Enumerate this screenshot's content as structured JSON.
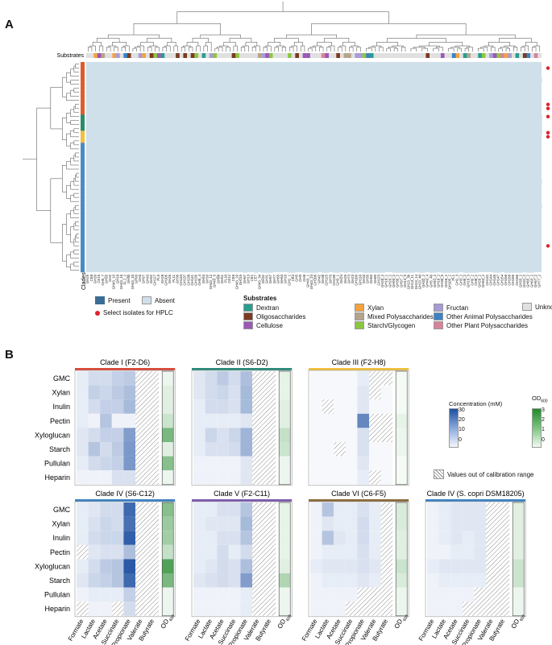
{
  "panelA": {
    "letter": "A",
    "substrates_label": "Substrates",
    "clades_label": "Clades",
    "legend": {
      "present": "Present",
      "absent": "Absent",
      "hplc": "Select isolates for HPLC",
      "substrates_title": "Substrates",
      "substrate_items": [
        {
          "label": "Dextran",
          "color": "#2a9d8f"
        },
        {
          "label": "Oligosaccharides",
          "color": "#7a3b22"
        },
        {
          "label": "Cellulose",
          "color": "#9b59b6"
        },
        {
          "label": "Xylan",
          "color": "#f4a340"
        },
        {
          "label": "Mixed Polysaccharides",
          "color": "#b5a48b"
        },
        {
          "label": "Starch/Glycogen",
          "color": "#8dc63f"
        },
        {
          "label": "Fructan",
          "color": "#a89bd6"
        },
        {
          "label": "Other Animal Polysaccharides",
          "color": "#3b82c4"
        },
        {
          "label": "Other Plant Polysaccharides",
          "color": "#d9829b"
        },
        {
          "label": "Unknown",
          "color": "#e0e0e0"
        }
      ]
    },
    "colors": {
      "present": "#3b6d94",
      "absent": "#cfe0ea",
      "hplc": "#e0202a"
    },
    "clade_colors": [
      "#e05a2b",
      "#2a8a6a",
      "#f0c040",
      "#4a8ac8"
    ],
    "col_labels": [
      "GH29",
      "CE8",
      "GH20",
      "CE15",
      "GH5_7",
      "GH95",
      "GH2",
      "GH43_19",
      "GH18",
      "GH43_16",
      "PL1_2",
      "GH30",
      "GH43_10",
      "GH99",
      "GH3",
      "GH97",
      "GH43",
      "GH92",
      "GH127",
      "PL9",
      "GH28",
      "GH105",
      "GH26",
      "PL11",
      "GH36",
      "GH143",
      "GH137",
      "GH138",
      "GH141",
      "GH139",
      "GH5_4",
      "GH53",
      "GH10",
      "GH43_12",
      "GH43_5",
      "GH88",
      "GH51",
      "PL10",
      "CE12",
      "CE6",
      "GH43_29",
      "GH115",
      "GH67",
      "GH13",
      "CE1",
      "CE7",
      "GH43_34",
      "GH32",
      "GH31",
      "GH57",
      "GH77",
      "GH65",
      "GH63",
      "GH16",
      "GH2_1",
      "CE4",
      "GH5",
      "GH9",
      "GH8",
      "GH43_1",
      "GH43_24",
      "GH106",
      "GH42",
      "GH38",
      "GH125",
      "GH76",
      "GH130",
      "GH3_1",
      "GH24",
      "GH25",
      "GH73",
      "GH23",
      "GH109",
      "GH110",
      "GH33",
      "GH35",
      "GH84",
      "GH89",
      "GH123",
      "GH20_2",
      "GH18_1",
      "GH29_2",
      "GH95_2",
      "GH36_2",
      "GH97_2",
      "GH13_9",
      "GH13_38",
      "GH13_11",
      "GH13_14",
      "GH13_40",
      "GH32_2",
      "GH43_4",
      "GH5_46",
      "GH51_2",
      "GH10_2",
      "GH30_5",
      "GH28_2",
      "GH105_2",
      "PL1",
      "GH2_3",
      "GH3_2",
      "GH5_2",
      "GH16_3",
      "GH9_2",
      "GH8_2",
      "GH26_2",
      "GH53_2",
      "GH142",
      "GH144",
      "GH146",
      "GH147",
      "GH154",
      "GH156",
      "GH158",
      "GH165",
      "GH166",
      "GH33_2",
      "GH31_2",
      "GH65_2",
      "GH63_2",
      "GH57_2",
      "GH77_2"
    ],
    "hplc_rows": [
      1,
      10,
      11,
      13,
      17,
      18,
      45
    ]
  },
  "panelB": {
    "letter": "B",
    "acids": [
      "Formate",
      "Lactate",
      "Acetate",
      "Succinate",
      "Propionate",
      "Valerate",
      "Butyrate"
    ],
    "od_label": "OD",
    "od_sub": "600",
    "substrates": [
      "GMC",
      "Xylan",
      "Inulin",
      "Pectin",
      "Xyloglucan",
      "Starch",
      "Pullulan",
      "Heparin"
    ],
    "conc_legend": {
      "title": "Concentration (mM)",
      "ticks": [
        "30",
        "20",
        "10",
        "0"
      ]
    },
    "od_legend": {
      "title": "OD",
      "sub": "600",
      "ticks": [
        "3",
        "2",
        "1",
        "0"
      ]
    },
    "hatch_label": "Values out of calibration range",
    "clades": [
      {
        "title": "Clade I (F2-D6)",
        "color": "#d9493a",
        "conc": [
          [
            2,
            5,
            5,
            7,
            8,
            -1,
            -1
          ],
          [
            2,
            7,
            6,
            8,
            10,
            -1,
            -1
          ],
          [
            2,
            5,
            7,
            7,
            11,
            -1,
            -1
          ],
          [
            2,
            1,
            9,
            1,
            1,
            -1,
            -1
          ],
          [
            3,
            5,
            7,
            7,
            16,
            -1,
            -1
          ],
          [
            3,
            9,
            5,
            8,
            17,
            -1,
            -1
          ],
          [
            2,
            5,
            6,
            7,
            17,
            -1,
            -1
          ],
          [
            1,
            1,
            1,
            4,
            4,
            -1,
            -1
          ]
        ],
        "od": [
          0.1,
          0.3,
          0.3,
          0.6,
          1.8,
          0.3,
          1.6,
          0.1
        ]
      },
      {
        "title": "Clade II (S6-D2)",
        "color": "#2a8a7a",
        "conc": [
          [
            3,
            5,
            8,
            5,
            10,
            -1,
            -1
          ],
          [
            3,
            5,
            6,
            4,
            11,
            -1,
            -1
          ],
          [
            2,
            5,
            5,
            4,
            11,
            -1,
            -1
          ],
          [
            2,
            2,
            2,
            2,
            3,
            -1,
            -1
          ],
          [
            2,
            6,
            4,
            6,
            12,
            -1,
            -1
          ],
          [
            2,
            4,
            4,
            5,
            12,
            -1,
            -1
          ],
          [
            1,
            1,
            1,
            1,
            3,
            -1,
            -1
          ],
          [
            1,
            1,
            1,
            1,
            3,
            -1,
            -1
          ]
        ],
        "od": [
          0.2,
          0.2,
          0.3,
          0.3,
          0.7,
          0.6,
          0.1,
          0.1
        ]
      },
      {
        "title": "Clade III (F2-H8)",
        "color": "#f0c040",
        "conc": [
          [
            0,
            0,
            0,
            0,
            2,
            -1,
            -1
          ],
          [
            0,
            0,
            0,
            0,
            3,
            -1,
            0
          ],
          [
            0,
            -1,
            0,
            0,
            3,
            0,
            0
          ],
          [
            0,
            0,
            0,
            0,
            20,
            -1,
            -1
          ],
          [
            0,
            0,
            0,
            0,
            4,
            -1,
            -1
          ],
          [
            0,
            0,
            -1,
            0,
            4,
            0,
            0
          ],
          [
            0,
            0,
            0,
            0,
            3,
            0,
            0
          ],
          [
            0,
            0,
            0,
            0,
            2,
            -1,
            0
          ]
        ],
        "od": [
          0,
          0,
          0,
          0.2,
          0.1,
          0.1,
          0,
          0
        ]
      },
      {
        "title": "Clade IV (S6-C12)",
        "color": "#3b82c4",
        "conc": [
          [
            2,
            3,
            5,
            5,
            25,
            -1,
            -1
          ],
          [
            2,
            4,
            6,
            5,
            24,
            -1,
            -1
          ],
          [
            2,
            5,
            6,
            6,
            27,
            -1,
            -1
          ],
          [
            -1,
            3,
            4,
            4,
            10,
            -1,
            -1
          ],
          [
            2,
            5,
            8,
            9,
            28,
            -1,
            -1
          ],
          [
            3,
            6,
            7,
            9,
            25,
            -1,
            -1
          ],
          [
            1,
            2,
            2,
            2,
            7,
            -1,
            -1
          ],
          [
            -1,
            1,
            1,
            -1,
            5,
            -1,
            -1
          ]
        ],
        "od": [
          1.6,
          1.3,
          1.2,
          0.7,
          2.4,
          1.8,
          0.1,
          0.1
        ]
      },
      {
        "title": "Clade V (F2-C11)",
        "color": "#7b5ab0",
        "conc": [
          [
            2,
            2,
            4,
            4,
            9,
            -1,
            -1
          ],
          [
            2,
            3,
            3,
            3,
            11,
            -1,
            -1
          ],
          [
            2,
            2,
            4,
            4,
            9,
            -1,
            -1
          ],
          [
            2,
            2,
            5,
            2,
            5,
            -1,
            -1
          ],
          [
            2,
            3,
            5,
            4,
            10,
            -1,
            -1
          ],
          [
            3,
            4,
            5,
            4,
            16,
            -1,
            -1
          ],
          [
            1,
            1,
            1,
            1,
            2,
            -1,
            -1
          ],
          [
            1,
            1,
            1,
            1,
            2,
            -1,
            -1
          ]
        ],
        "od": [
          0.2,
          0.2,
          0.2,
          0.2,
          0.3,
          1.0,
          0.1,
          0.1
        ]
      },
      {
        "title": "Clade VI (C6-F5)",
        "color": "#8a6a3a",
        "conc": [
          [
            1,
            9,
            2,
            2,
            4,
            2,
            -1
          ],
          [
            1,
            3,
            2,
            2,
            5,
            2,
            -1
          ],
          [
            1,
            9,
            3,
            2,
            5,
            2,
            -1
          ],
          [
            1,
            2,
            2,
            2,
            4,
            2,
            -1
          ],
          [
            2,
            3,
            3,
            3,
            4,
            3,
            -1
          ],
          [
            1,
            2,
            2,
            2,
            3,
            2,
            -1
          ],
          [
            1,
            1,
            1,
            1,
            -1,
            -1,
            -1
          ],
          [
            1,
            1,
            1,
            -1,
            -1,
            -1,
            -1
          ]
        ],
        "od": [
          0.4,
          0.4,
          0.3,
          0.3,
          0.6,
          0.4,
          0.1,
          0.1
        ]
      },
      {
        "title": "Clade IV (S. copri DSM18205)",
        "color": "#3b82c4",
        "conc": [
          [
            1,
            2,
            3,
            3,
            3,
            -1,
            -1
          ],
          [
            1,
            2,
            3,
            3,
            3,
            -1,
            -1
          ],
          [
            1,
            2,
            3,
            2,
            3,
            -1,
            -1
          ],
          [
            1,
            1,
            2,
            2,
            3,
            -1,
            -1
          ],
          [
            2,
            3,
            3,
            3,
            3,
            -1,
            -1
          ],
          [
            1,
            2,
            2,
            2,
            2,
            -1,
            -1
          ],
          [
            1,
            1,
            1,
            1,
            -1,
            -1,
            -1
          ],
          [
            1,
            1,
            1,
            -1,
            -1,
            -1,
            -1
          ]
        ],
        "od": [
          0.3,
          0.3,
          0.3,
          0.3,
          0.6,
          0.6,
          0.1,
          0.1
        ]
      }
    ]
  }
}
